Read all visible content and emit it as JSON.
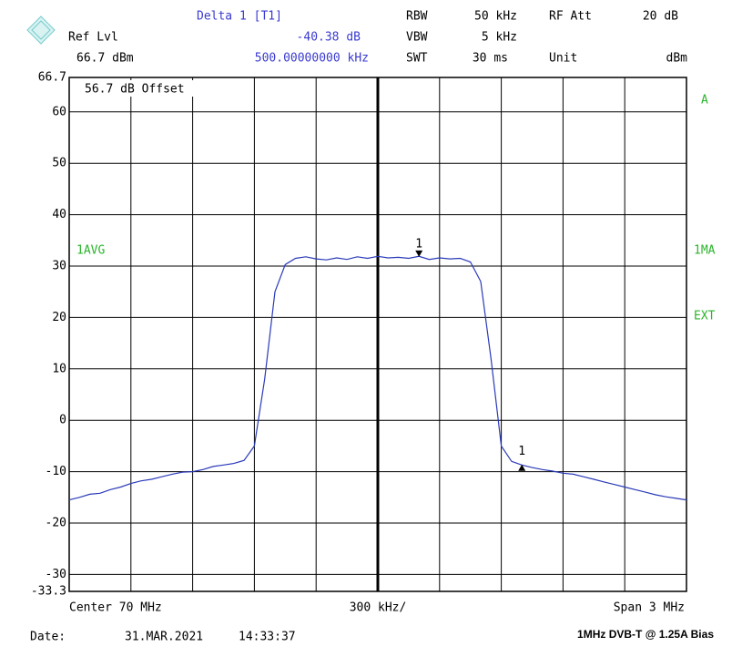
{
  "chart_data": {
    "type": "line",
    "header": {
      "delta_title": "Delta 1 [T1]",
      "ref_lvl_label": "Ref Lvl",
      "delta_value": "-40.38 dB",
      "ref_lvl_value": "66.7 dBm",
      "delta_freq": "500.00000000 kHz",
      "rbw_label": "RBW",
      "rbw_value": "50 kHz",
      "vbw_label": "VBW",
      "vbw_value": "5 kHz",
      "swt_label": "SWT",
      "swt_value": "30 ms",
      "rf_att_label": "RF Att",
      "rf_att_value": "20 dB",
      "unit_label": "Unit",
      "unit_value": "dBm"
    },
    "offset_note": "56.7 dB Offset",
    "left_annotations": [
      "1AVG"
    ],
    "right_annotations": [
      "A",
      "1MA",
      "EXT"
    ],
    "center_label": "Center 70 MHz",
    "div_label": "300 kHz/",
    "span_label": "Span 3 MHz",
    "date_label": "Date:",
    "date": "31.MAR.2021",
    "time": "14:33:37",
    "caption": "1MHz DVB-T @ 1.25A Bias",
    "xlim": [
      68.5,
      71.5
    ],
    "ylim": [
      -33.3,
      66.7
    ],
    "yticks": [
      66.7,
      60,
      50,
      40,
      30,
      20,
      10,
      0,
      -10,
      -20,
      -30,
      -33.3
    ],
    "grid": true,
    "color": "#2a3ab8",
    "x": [
      68.5,
      68.55,
      68.6,
      68.65,
      68.7,
      68.75,
      68.8,
      68.85,
      68.9,
      68.95,
      69.0,
      69.05,
      69.1,
      69.15,
      69.2,
      69.25,
      69.3,
      69.35,
      69.4,
      69.45,
      69.5,
      69.55,
      69.6,
      69.65,
      69.7,
      69.75,
      69.8,
      69.85,
      69.9,
      69.95,
      70.0,
      70.05,
      70.1,
      70.15,
      70.2,
      70.25,
      70.3,
      70.35,
      70.4,
      70.45,
      70.5,
      70.55,
      70.6,
      70.65,
      70.7,
      70.75,
      70.8,
      70.85,
      70.9,
      70.95,
      71.0,
      71.05,
      71.1,
      71.15,
      71.2,
      71.25,
      71.3,
      71.35,
      71.4,
      71.45,
      71.5
    ],
    "values": [
      -15.5,
      -15.0,
      -14.4,
      -14.2,
      -13.5,
      -13.0,
      -12.3,
      -11.8,
      -11.5,
      -11.0,
      -10.5,
      -10.1,
      -10.0,
      -9.6,
      -9.0,
      -8.7,
      -8.4,
      -7.8,
      -5.0,
      8.0,
      25.0,
      30.3,
      31.5,
      31.8,
      31.4,
      31.2,
      31.6,
      31.3,
      31.8,
      31.5,
      31.9,
      31.6,
      31.7,
      31.5,
      31.9,
      31.3,
      31.6,
      31.4,
      31.5,
      30.8,
      27.0,
      12.0,
      -5.0,
      -8.0,
      -8.7,
      -9.2,
      -9.6,
      -9.9,
      -10.3,
      -10.5,
      -11.0,
      -11.5,
      -12.0,
      -12.5,
      -13.0,
      -13.5,
      -14.0,
      -14.5,
      -14.9,
      -15.2,
      -15.5
    ],
    "markers": [
      {
        "label": "1",
        "x": 70.2,
        "y": 31.8,
        "direction": "down"
      },
      {
        "label": "1",
        "x": 70.7,
        "y": -8.6,
        "direction": "up"
      }
    ]
  }
}
